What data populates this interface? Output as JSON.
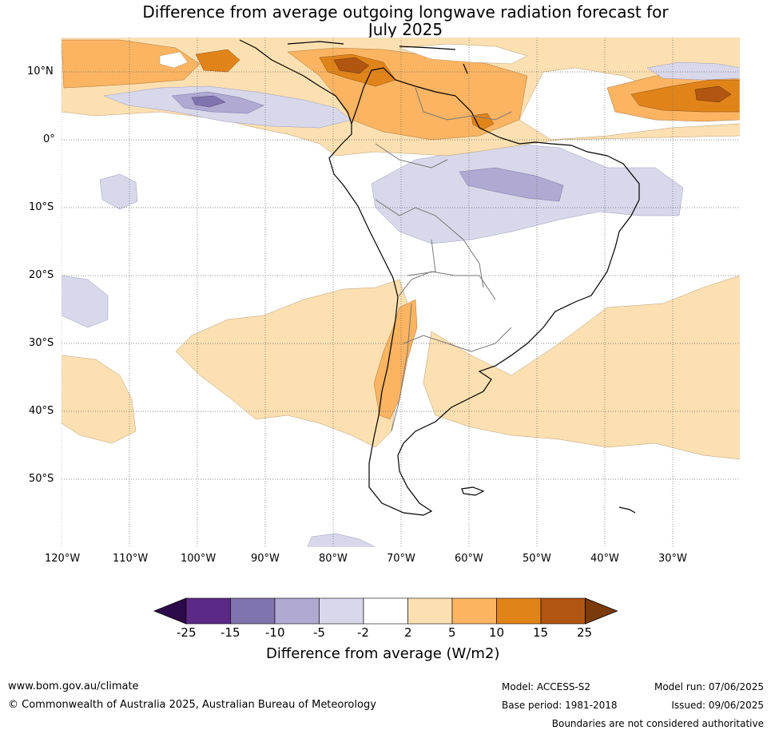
{
  "title_line1": "Difference from average outgoing longwave radiation forecast for",
  "title_line2": "July 2025",
  "lat_labels": [
    "10°N",
    "0°",
    "10°S",
    "20°S",
    "30°S",
    "40°S",
    "50°S"
  ],
  "lon_labels": [
    "120°W",
    "110°W",
    "100°W",
    "90°W",
    "80°W",
    "70°W",
    "60°W",
    "50°W",
    "40°W",
    "30°W"
  ],
  "colorbar": {
    "ticks": [
      "-25",
      "-15",
      "-10",
      "-5",
      "-2",
      "2",
      "5",
      "10",
      "15",
      "25"
    ],
    "colors": [
      "#2d0b4a",
      "#5b2a86",
      "#8173ad",
      "#b0a9d1",
      "#d8d8ea",
      "#ffffff",
      "#fde0b1",
      "#fbb462",
      "#e0841a",
      "#b15610",
      "#7a3a0a"
    ],
    "label": "Difference from average (W/m2)"
  },
  "footer": {
    "url": "www.bom.gov.au/climate",
    "copyright": "© Commonwealth of Australia 2025, Australian Bureau of Meteorology",
    "model": "Model: ACCESS-S2",
    "base_period": "Base period: 1981-2018",
    "model_run": "Model run: 07/06/2025",
    "issued": "Issued: 09/06/2025",
    "disclaimer": "Boundaries are not considered authoritative"
  }
}
